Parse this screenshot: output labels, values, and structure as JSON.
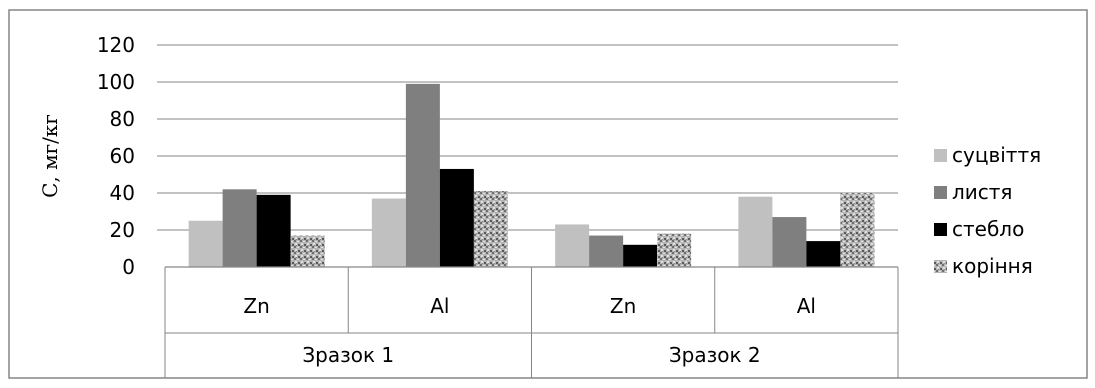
{
  "chart_data": {
    "type": "bar",
    "ylabel": "С, мг/кг",
    "ylim": [
      0,
      120
    ],
    "yticks": [
      "0",
      "20",
      "40",
      "60",
      "80",
      "100",
      "120"
    ],
    "grid": true,
    "legend_position": "right",
    "groups": [
      {
        "label": "Зразок 1",
        "categories": [
          "Zn",
          "Al"
        ]
      },
      {
        "label": "Зразок 2",
        "categories": [
          "Zn",
          "Al"
        ]
      }
    ],
    "series": [
      {
        "name": "суцвіття",
        "color": "#c0c0c0",
        "pattern": "solid",
        "values": [
          25,
          37,
          23,
          38
        ]
      },
      {
        "name": "листя",
        "color": "#7f7f7f",
        "pattern": "solid",
        "values": [
          42,
          99,
          17,
          27
        ]
      },
      {
        "name": "стебло",
        "color": "#000000",
        "pattern": "solid",
        "values": [
          39,
          53,
          12,
          14
        ]
      },
      {
        "name": "коріння",
        "color": "#a6a6a6",
        "pattern": "texture",
        "values": [
          17,
          41,
          18,
          40
        ]
      }
    ]
  }
}
